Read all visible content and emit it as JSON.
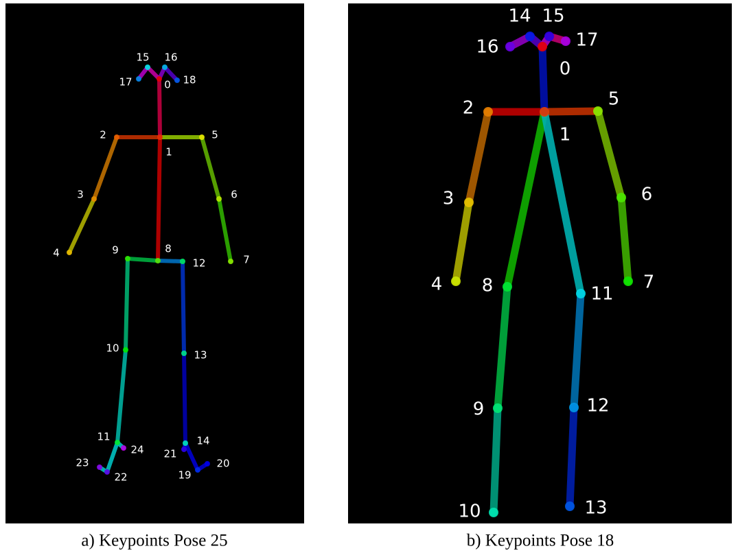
{
  "panels": [
    {
      "caption": "a) Keypoints Pose 25",
      "keypoints": [
        "0",
        "1",
        "2",
        "3",
        "4",
        "5",
        "6",
        "7",
        "8",
        "9",
        "10",
        "11",
        "12",
        "13",
        "14",
        "15",
        "16",
        "17",
        "18",
        "19",
        "20",
        "21",
        "22",
        "23",
        "24"
      ]
    },
    {
      "caption": "b) Keypoints Pose 18",
      "keypoints": [
        "0",
        "1",
        "2",
        "3",
        "4",
        "5",
        "6",
        "7",
        "8",
        "9",
        "10",
        "11",
        "12",
        "13",
        "14",
        "15",
        "16",
        "17"
      ]
    }
  ]
}
